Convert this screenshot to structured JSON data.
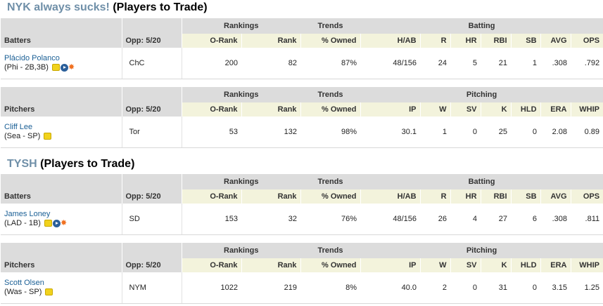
{
  "sections": [
    {
      "team": "NYK always sucks!",
      "suffix": "(Players to Trade)",
      "tables": [
        {
          "type": "Batters",
          "opp_label": "Opp: 5/20",
          "groups": {
            "rankings": "Rankings",
            "trends": "Trends",
            "stats": "Batting"
          },
          "columns": [
            "O-Rank",
            "Rank",
            "% Owned",
            "H/AB",
            "R",
            "HR",
            "RBI",
            "SB",
            "AVG",
            "OPS"
          ],
          "player": {
            "name": "Plácido Polanco",
            "info": "(Phi - 2B,3B)",
            "opp": "ChC",
            "values": [
              "200",
              "82",
              "87%",
              "48/156",
              "24",
              "5",
              "21",
              "1",
              ".308",
              ".792"
            ],
            "icons": [
              "note-icon",
              "play-icon",
              "star-icon"
            ]
          }
        },
        {
          "type": "Pitchers",
          "opp_label": "Opp: 5/20",
          "groups": {
            "rankings": "Rankings",
            "trends": "Trends",
            "stats": "Pitching"
          },
          "columns": [
            "O-Rank",
            "Rank",
            "% Owned",
            "IP",
            "W",
            "SV",
            "K",
            "HLD",
            "ERA",
            "WHIP"
          ],
          "player": {
            "name": "Cliff Lee",
            "info": "(Sea - SP)",
            "opp": "Tor",
            "values": [
              "53",
              "132",
              "98%",
              "30.1",
              "1",
              "0",
              "25",
              "0",
              "2.08",
              "0.89"
            ],
            "icons": [
              "note-icon"
            ]
          }
        }
      ]
    },
    {
      "team": "TYSH",
      "suffix": "(Players to Trade)",
      "tables": [
        {
          "type": "Batters",
          "opp_label": "Opp: 5/20",
          "groups": {
            "rankings": "Rankings",
            "trends": "Trends",
            "stats": "Batting"
          },
          "columns": [
            "O-Rank",
            "Rank",
            "% Owned",
            "H/AB",
            "R",
            "HR",
            "RBI",
            "SB",
            "AVG",
            "OPS"
          ],
          "player": {
            "name": "James Loney",
            "info": "(LAD - 1B)",
            "opp": "SD",
            "values": [
              "153",
              "32",
              "76%",
              "48/156",
              "26",
              "4",
              "27",
              "6",
              ".308",
              ".811"
            ],
            "icons": [
              "note-icon",
              "play-icon",
              "star-icon"
            ]
          }
        },
        {
          "type": "Pitchers",
          "opp_label": "Opp: 5/20",
          "groups": {
            "rankings": "Rankings",
            "trends": "Trends",
            "stats": "Pitching"
          },
          "columns": [
            "O-Rank",
            "Rank",
            "% Owned",
            "IP",
            "W",
            "SV",
            "K",
            "HLD",
            "ERA",
            "WHIP"
          ],
          "player": {
            "name": "Scott Olsen",
            "info": "(Was - SP)",
            "opp": "NYM",
            "values": [
              "1022",
              "219",
              "8%",
              "40.0",
              "2",
              "0",
              "31",
              "0",
              "3.15",
              "1.25"
            ],
            "icons": [
              "note-icon"
            ]
          }
        }
      ]
    }
  ]
}
